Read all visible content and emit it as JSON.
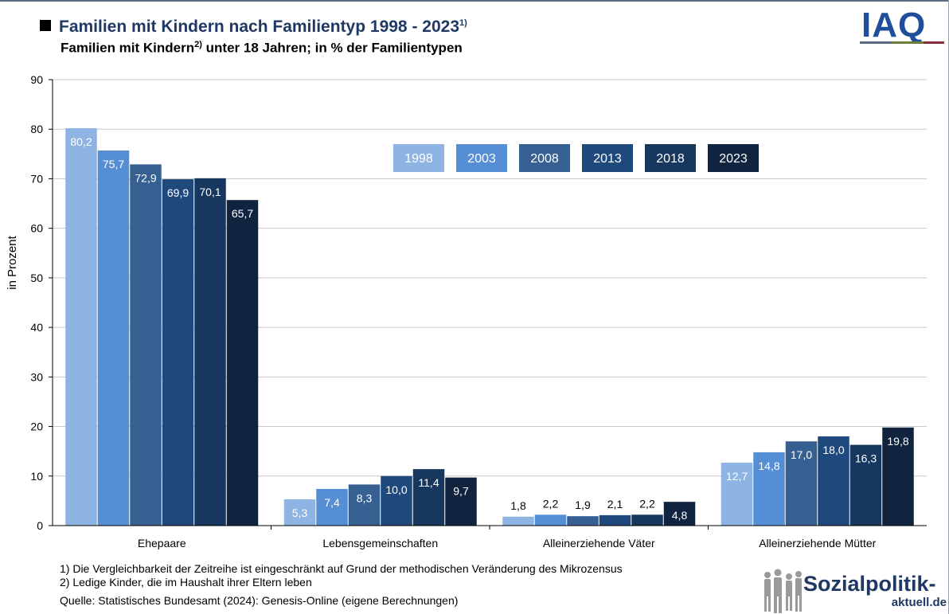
{
  "header": {
    "title": "Familien mit Kindern nach Familientyp 1998 - 2023",
    "title_sup": "1)",
    "subtitle_a": "Familien mit Kindern",
    "subtitle_sup": "2)",
    "subtitle_b": " unter 18 Jahren; in % der Familientypen"
  },
  "logo": {
    "iaq": "IAQ",
    "sp_main": "Sozialpolitik-",
    "sp_sub": "aktuell.de"
  },
  "notes": {
    "note1": "1) Die Vergleichbarkeit der Zeitreihe ist eingeschränkt auf Grund der methodischen Veränderung des Mikrozensus",
    "note2": "2) Ledige Kinder, die im Haushalt ihrer Eltern leben",
    "source": "Quelle: Statistisches Bundesamt (2024): Genesis-Online (eigene Berechnungen)"
  },
  "chart_data": {
    "type": "bar",
    "ylabel": "in Prozent",
    "ylim": [
      0,
      90
    ],
    "yticks": [
      0,
      10,
      20,
      30,
      40,
      50,
      60,
      70,
      80,
      90
    ],
    "grid": true,
    "legend_position": "top-center",
    "categories": [
      "Ehepaare",
      "Lebensgemeinschaften",
      "Alleinerziehende Väter",
      "Alleinerziehende Mütter"
    ],
    "series": [
      {
        "name": "1998",
        "color": "#8eb4e3",
        "values": [
          80.2,
          5.3,
          1.8,
          12.7
        ]
      },
      {
        "name": "2003",
        "color": "#558ed5",
        "values": [
          75.7,
          7.4,
          2.2,
          14.8
        ]
      },
      {
        "name": "2008",
        "color": "#376092",
        "values": [
          72.9,
          8.3,
          1.9,
          17.0
        ]
      },
      {
        "name": "2013",
        "color": "#1f497d",
        "values": [
          69.9,
          10.0,
          2.1,
          18.0
        ]
      },
      {
        "name": "2018",
        "color": "#17375e",
        "values": [
          70.1,
          11.4,
          2.2,
          16.3
        ]
      },
      {
        "name": "2023",
        "color": "#10243f",
        "values": [
          65.7,
          9.7,
          4.8,
          19.8
        ]
      }
    ]
  }
}
